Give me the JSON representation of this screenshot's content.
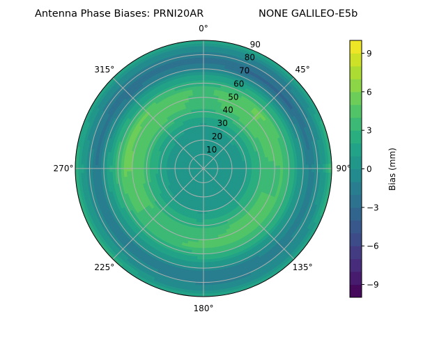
{
  "chart_data": {
    "type": "heatmap",
    "projection": "polar",
    "title_left": "Antenna Phase Biases: PRNI20AR",
    "title_right": "NONE GALILEO-E5b",
    "theta_zero": "north",
    "theta_direction": "clockwise",
    "theta_ticks": [
      0,
      45,
      90,
      135,
      180,
      225,
      270,
      315
    ],
    "theta_tick_labels": [
      "0°",
      "45°",
      "90°",
      "135°",
      "180°",
      "225°",
      "270°",
      "315°"
    ],
    "r_ticks": [
      10,
      20,
      30,
      40,
      50,
      60,
      70,
      80,
      90
    ],
    "r_tick_labels": [
      "10",
      "20",
      "30",
      "40",
      "50",
      "60",
      "70",
      "80",
      "90"
    ],
    "rlim": [
      0,
      90
    ],
    "grid": true,
    "colormap": "viridis",
    "colorbar": {
      "label": "Bias (mm)",
      "range": [
        -10,
        10
      ],
      "level_step": 1,
      "ticks": [
        -9,
        -6,
        -3,
        0,
        3,
        6,
        9
      ],
      "tick_labels": [
        "−9",
        "−6",
        "−3",
        "0",
        "3",
        "6",
        "9"
      ],
      "placement": "right"
    },
    "r_values": [
      0,
      10,
      20,
      30,
      40,
      45,
      55,
      65,
      75,
      85,
      90
    ],
    "azimuths": [
      0,
      45,
      90,
      135,
      180,
      225,
      270,
      315
    ],
    "values": [
      [
        0,
        0,
        0,
        0,
        0,
        0,
        0,
        0
      ],
      [
        0.3,
        0.3,
        0.3,
        0.3,
        0.3,
        0.3,
        0.3,
        0.3
      ],
      [
        0.5,
        0.6,
        0.5,
        0.5,
        0.5,
        0.5,
        0.5,
        0.5
      ],
      [
        0.8,
        1.2,
        1.0,
        1.0,
        0.8,
        1.0,
        1.5,
        1.2
      ],
      [
        2.5,
        3.5,
        3.0,
        3.0,
        2.5,
        2.5,
        3.5,
        3.5
      ],
      [
        3.5,
        4.8,
        3.8,
        4.2,
        3.8,
        3.8,
        4.8,
        4.8
      ],
      [
        3.8,
        5.2,
        4.0,
        4.0,
        4.2,
        3.6,
        5.2,
        5.0
      ],
      [
        1.0,
        1.5,
        1.5,
        1.5,
        1.5,
        1.0,
        2.0,
        1.0
      ],
      [
        -2.5,
        -3.5,
        -1.5,
        -1.5,
        -2.0,
        -1.5,
        -2.0,
        -2.8
      ],
      [
        -0.5,
        -0.5,
        1.0,
        -0.5,
        -0.5,
        0.5,
        1.0,
        -0.5
      ],
      [
        1.5,
        1.5,
        3.5,
        1.5,
        1.5,
        2.5,
        2.5,
        1.5
      ]
    ]
  }
}
